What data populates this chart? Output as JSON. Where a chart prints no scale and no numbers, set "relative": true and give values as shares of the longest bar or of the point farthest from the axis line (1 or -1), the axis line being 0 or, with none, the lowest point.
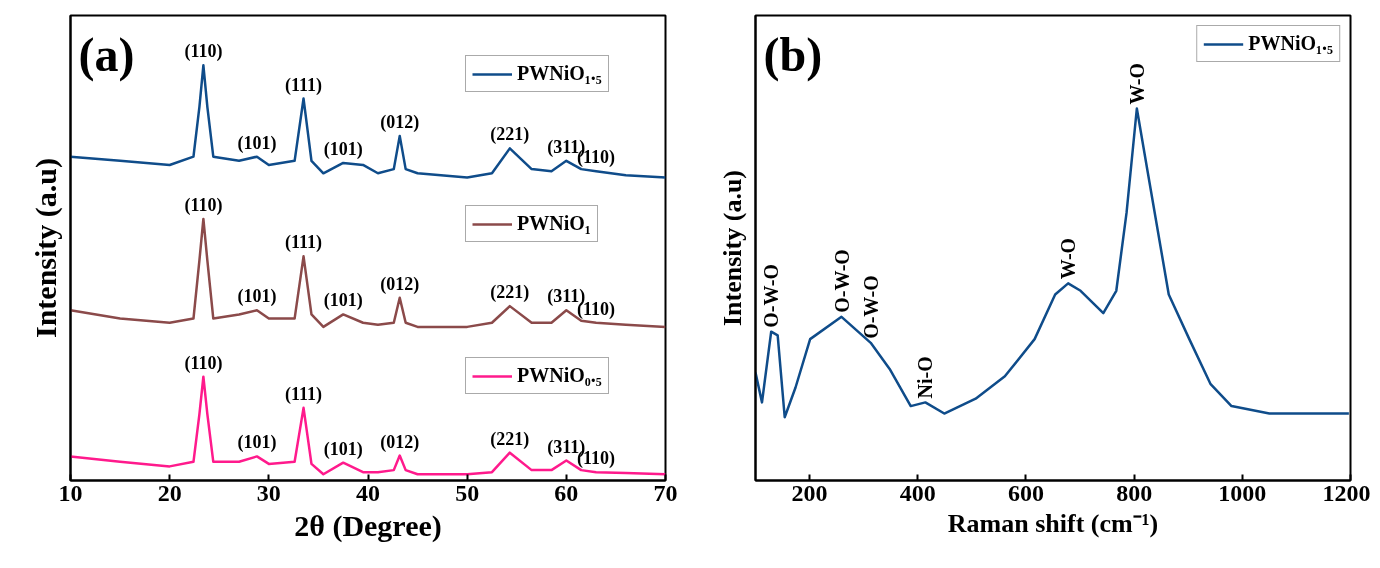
{
  "chart_data": [
    {
      "type": "line",
      "title": "(a)",
      "xlabel": "2θ (Degree)",
      "ylabel": "Intensity (a.u)",
      "relative": true,
      "xlim": [
        10,
        70
      ],
      "xticks": [
        10,
        20,
        30,
        40,
        50,
        60,
        70
      ],
      "legend": "top right",
      "grid": false,
      "x": [
        10,
        15,
        20,
        22.4,
        23.0,
        23.4,
        23.8,
        24.4,
        27,
        28.8,
        30,
        32.6,
        33.5,
        34.3,
        35.5,
        37.5,
        39.5,
        41,
        42.6,
        43.2,
        43.8,
        45,
        50,
        52.5,
        54.3,
        56.5,
        58.5,
        60,
        61.5,
        63,
        66,
        70
      ],
      "series": [
        {
          "name": "PWNiO₁.₅",
          "color": "#0f4c8a",
          "values": [
            0.78,
            0.77,
            0.76,
            0.78,
            0.9,
            1.0,
            0.9,
            0.78,
            0.77,
            0.78,
            0.76,
            0.77,
            0.92,
            0.77,
            0.74,
            0.765,
            0.76,
            0.74,
            0.75,
            0.83,
            0.75,
            0.74,
            0.73,
            0.74,
            0.8,
            0.75,
            0.745,
            0.77,
            0.75,
            0.745,
            0.735,
            0.73
          ]
        },
        {
          "name": "PWNiO₁",
          "color": "#8b4a4a",
          "values": [
            0.41,
            0.39,
            0.38,
            0.39,
            0.53,
            0.63,
            0.53,
            0.39,
            0.4,
            0.41,
            0.39,
            0.39,
            0.54,
            0.4,
            0.37,
            0.4,
            0.38,
            0.375,
            0.38,
            0.44,
            0.38,
            0.37,
            0.37,
            0.38,
            0.42,
            0.38,
            0.38,
            0.41,
            0.385,
            0.38,
            0.375,
            0.37
          ]
        },
        {
          "name": "PWNiO₀.₅",
          "color": "#ff1a8c",
          "values": [
            0.058,
            0.045,
            0.034,
            0.045,
            0.16,
            0.25,
            0.16,
            0.045,
            0.045,
            0.058,
            0.04,
            0.045,
            0.175,
            0.04,
            0.015,
            0.043,
            0.02,
            0.02,
            0.025,
            0.06,
            0.025,
            0.015,
            0.015,
            0.02,
            0.067,
            0.025,
            0.025,
            0.048,
            0.025,
            0.02,
            0.018,
            0.015
          ]
        }
      ],
      "annotations": [
        {
          "text": "(110)",
          "x": 23.4,
          "y": 1.0
        },
        {
          "text": "(101)",
          "x": 28.8,
          "y": 0.78
        },
        {
          "text": "(111)",
          "x": 33.5,
          "y": 0.92
        },
        {
          "text": "(101)",
          "x": 37.5,
          "y": 0.765
        },
        {
          "text": "(012)",
          "x": 43.2,
          "y": 0.83
        },
        {
          "text": "(221)",
          "x": 54.3,
          "y": 0.8
        },
        {
          "text": "(311)",
          "x": 60,
          "y": 0.77
        },
        {
          "text": "(110)",
          "x": 63,
          "y": 0.745
        },
        {
          "text": "(110)",
          "x": 23.4,
          "y": 0.63
        },
        {
          "text": "(101)",
          "x": 28.8,
          "y": 0.41
        },
        {
          "text": "(111)",
          "x": 33.5,
          "y": 0.54
        },
        {
          "text": "(101)",
          "x": 37.5,
          "y": 0.4
        },
        {
          "text": "(012)",
          "x": 43.2,
          "y": 0.44
        },
        {
          "text": "(221)",
          "x": 54.3,
          "y": 0.42
        },
        {
          "text": "(311)",
          "x": 60,
          "y": 0.41
        },
        {
          "text": "(110)",
          "x": 63,
          "y": 0.38
        },
        {
          "text": "(110)",
          "x": 23.4,
          "y": 0.25
        },
        {
          "text": "(101)",
          "x": 28.8,
          "y": 0.058
        },
        {
          "text": "(111)",
          "x": 33.5,
          "y": 0.175
        },
        {
          "text": "(101)",
          "x": 37.5,
          "y": 0.043
        },
        {
          "text": "(012)",
          "x": 43.2,
          "y": 0.06
        },
        {
          "text": "(221)",
          "x": 54.3,
          "y": 0.067
        },
        {
          "text": "(311)",
          "x": 60,
          "y": 0.048
        },
        {
          "text": "(110)",
          "x": 63,
          "y": 0.02
        }
      ]
    },
    {
      "type": "line",
      "title": "(b)",
      "xlabel": "Raman shift (cm⁻¹)",
      "ylabel": "Intensity (a.u)",
      "relative": true,
      "xlim": [
        100,
        1200
      ],
      "xticks": [
        200,
        400,
        600,
        800,
        1000,
        1200
      ],
      "legend": "top right",
      "grid": false,
      "x": [
        100,
        112,
        129,
        141,
        154,
        174,
        201,
        259,
        313,
        348,
        387,
        414,
        449,
        507,
        561,
        616,
        654,
        678,
        701,
        743,
        767,
        786,
        805,
        825,
        864,
        902,
        941,
        980,
        1050,
        1197
      ],
      "series": [
        {
          "name": "PWNiO₁.₅",
          "color": "#0f4c8a",
          "values": [
            0.29,
            0.21,
            0.4,
            0.39,
            0.17,
            0.25,
            0.38,
            0.44,
            0.37,
            0.3,
            0.2,
            0.21,
            0.18,
            0.22,
            0.28,
            0.38,
            0.5,
            0.53,
            0.51,
            0.45,
            0.51,
            0.72,
            1.0,
            0.83,
            0.5,
            0.38,
            0.26,
            0.2,
            0.18,
            0.18
          ]
        }
      ],
      "annotations": [
        {
          "text": "O-W-O",
          "x": 129,
          "y": 0.4
        },
        {
          "text": "O-W-O",
          "x": 259,
          "y": 0.44
        },
        {
          "text": "O-W-O",
          "x": 313,
          "y": 0.37
        },
        {
          "text": "Ni-O",
          "x": 414,
          "y": 0.21
        },
        {
          "text": "W-O",
          "x": 678,
          "y": 0.53
        },
        {
          "text": "W-O",
          "x": 805,
          "y": 1.0
        }
      ]
    }
  ]
}
